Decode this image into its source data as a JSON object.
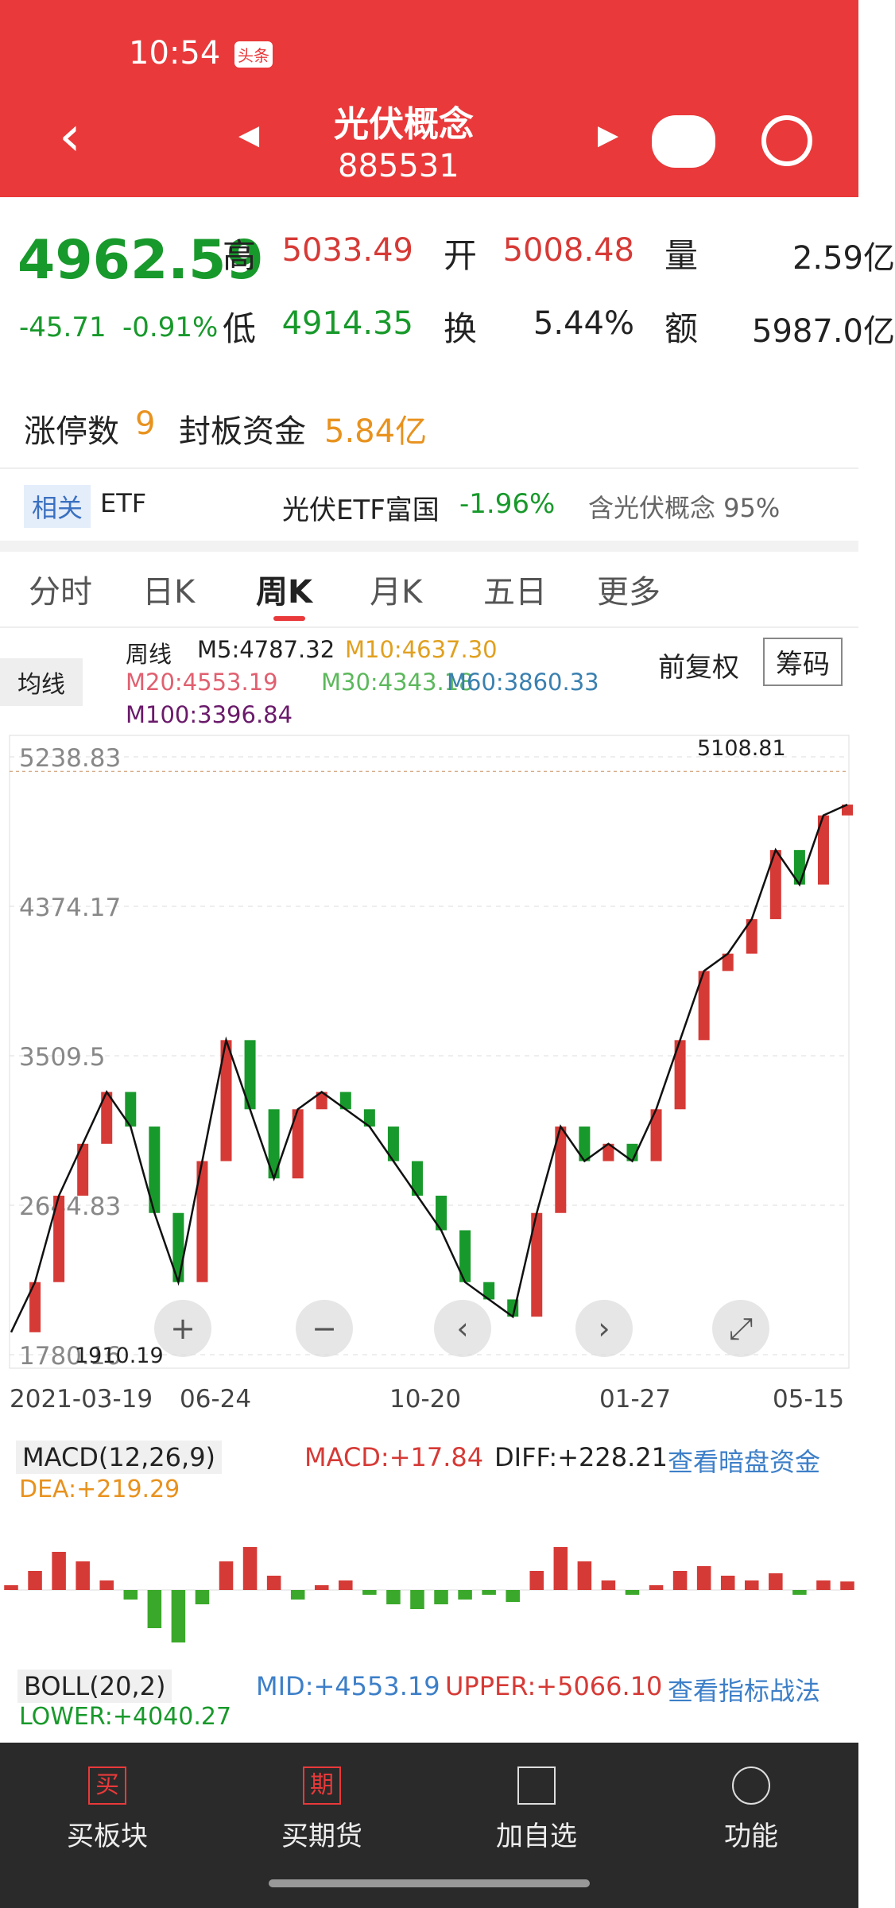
{
  "status": {
    "time": "10:54",
    "badge": "头条"
  },
  "header": {
    "title": "光伏概念",
    "code": "885531"
  },
  "quote": {
    "price": "4962.59",
    "change": "-45.71",
    "pct": "-0.91%",
    "fields": [
      {
        "label": "高",
        "value": "5033.49"
      },
      {
        "label": "开",
        "value": "5008.48"
      },
      {
        "label": "量",
        "value": "2.59亿"
      },
      {
        "label": "低",
        "value": "4914.35"
      },
      {
        "label": "换",
        "value": "5.44%"
      },
      {
        "label": "额",
        "value": "5987.0亿"
      }
    ]
  },
  "limit": {
    "label": "涨停数",
    "count": "9",
    "fund_label": "封板资金",
    "fund": "5.84亿"
  },
  "etf": {
    "tag": "相关",
    "name": "ETF",
    "fund": "光伏ETF富国",
    "pct": "-1.96%",
    "note": "含光伏概念 95%"
  },
  "tabs": [
    "分时",
    "日K",
    "周K",
    "月K",
    "五日",
    "更多"
  ],
  "ma": {
    "button": "均线",
    "period": "周线",
    "items": [
      "M5:4787.32",
      "M10:4637.30",
      "M20:4553.19",
      "M30:4343.18",
      "M60:3860.33",
      "M100:3396.84"
    ],
    "adjust": "前复权",
    "chips": "筹码"
  },
  "chart": {
    "ylim": [
      1702,
      5363
    ],
    "yticks": [
      5238.83,
      4374.17,
      3509.5,
      2644.83,
      1780.16
    ],
    "high": "5108.81",
    "low": "1910.19",
    "dates": [
      "2021-03-19",
      "06-24",
      "10-20",
      "01-27",
      "05-15"
    ],
    "closes": [
      1910,
      2200,
      2700,
      3000,
      3300,
      3100,
      2600,
      2200,
      2900,
      3600,
      3200,
      2800,
      3200,
      3300,
      3200,
      3100,
      2900,
      2700,
      2500,
      2200,
      2100,
      2000,
      2600,
      3100,
      2900,
      3000,
      2900,
      3200,
      3600,
      4000,
      4100,
      4300,
      4700,
      4500,
      4900,
      4962.59
    ],
    "macd": [
      10,
      40,
      80,
      60,
      20,
      -20,
      -80,
      -110,
      -30,
      60,
      90,
      30,
      -20,
      10,
      20,
      -10,
      -30,
      -40,
      -30,
      -20,
      -10,
      -25,
      40,
      90,
      60,
      20,
      -10,
      10,
      40,
      50,
      30,
      20,
      35,
      -10,
      20,
      17.84
    ]
  },
  "macd": {
    "name": "MACD(12,26,9)",
    "macd": "MACD:+17.84",
    "diff": "DIFF:+228.21",
    "link": "查看暗盘资金",
    "dea": "DEA:+219.29"
  },
  "boll": {
    "name": "BOLL(20,2)",
    "mid": "MID:+4553.19",
    "upper": "UPPER:+5066.10",
    "link": "查看指标战法",
    "lower": "LOWER:+4040.27"
  },
  "nav": [
    {
      "icon": "买",
      "label": "买板块"
    },
    {
      "icon": "期",
      "label": "买期货"
    },
    {
      "label": "加自选"
    },
    {
      "label": "功能"
    }
  ]
}
